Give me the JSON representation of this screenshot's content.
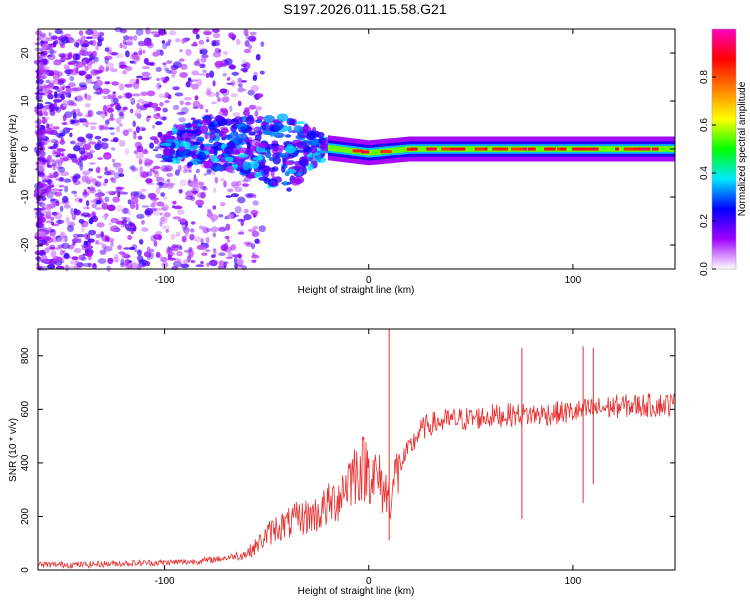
{
  "title": "S197.2026.011.15.58.G21",
  "chart_data": [
    {
      "type": "heatmap",
      "title": "S197.2026.011.15.58.G21",
      "xlabel": "Height of straight line (km)",
      "ylabel": "Frequency (Hz)",
      "xlim": [
        -162,
        150
      ],
      "ylim": [
        -25,
        25
      ],
      "x_ticks": [
        -100,
        0,
        100
      ],
      "y_ticks": [
        -20,
        -10,
        0,
        10,
        20
      ],
      "description_band": "Noisy purple speckle for heights below about -100 km; a broad blue/cyan band between about -100 and -20 km; a narrow band centered at 0 Hz from about -20 km to 150 km with peak amplitude (red) near 0 Hz.",
      "band": [
        {
          "x": -100,
          "center": 0.2,
          "half_width": 3.0
        },
        {
          "x": -80,
          "center": 1.5,
          "half_width": 5.0
        },
        {
          "x": -60,
          "center": 0.5,
          "half_width": 6.0
        },
        {
          "x": -40,
          "center": -1.0,
          "half_width": 8.0
        },
        {
          "x": -25,
          "center": 0.5,
          "half_width": 3.0
        },
        {
          "x": -15,
          "center": 0.0,
          "half_width": 1.0
        },
        {
          "x": 0,
          "center": -0.8,
          "half_width": 0.8
        },
        {
          "x": 20,
          "center": 0.0,
          "half_width": 0.8
        },
        {
          "x": 100,
          "center": 0.0,
          "half_width": 0.8
        },
        {
          "x": 150,
          "center": 0.0,
          "half_width": 0.8
        }
      ],
      "colorbar": {
        "label": "Normalized spectral amplitude",
        "range": [
          0.0,
          1.0
        ],
        "ticks": [
          0.0,
          0.2,
          0.4,
          0.6,
          0.8
        ],
        "colors": [
          "#ffffff",
          "#a000ff",
          "#0000ff",
          "#00e8ff",
          "#00ff00",
          "#ffff00",
          "#ff8000",
          "#ff0000",
          "#ff00c0"
        ]
      }
    },
    {
      "type": "line",
      "title": "",
      "xlabel": "Height of straight line (km)",
      "ylabel": "SNR (10 * v/v)",
      "xlim": [
        -162,
        150
      ],
      "ylim": [
        0,
        900
      ],
      "x_ticks": [
        -100,
        0,
        100
      ],
      "y_ticks": [
        0,
        200,
        400,
        600,
        800
      ],
      "series_color": "#e83030",
      "series": [
        {
          "name": "SNR",
          "x": [
            -162,
            -140,
            -120,
            -100,
            -90,
            -80,
            -70,
            -60,
            -55,
            -50,
            -45,
            -40,
            -35,
            -30,
            -25,
            -20,
            -15,
            -10,
            -5,
            0,
            5,
            10,
            15,
            20,
            25,
            30,
            40,
            50,
            60,
            70,
            80,
            90,
            100,
            110,
            120,
            130,
            140,
            150
          ],
          "y": [
            20,
            20,
            25,
            28,
            30,
            35,
            45,
            60,
            90,
            130,
            160,
            170,
            190,
            200,
            210,
            240,
            270,
            340,
            380,
            380,
            330,
            270,
            390,
            450,
            520,
            545,
            560,
            565,
            575,
            580,
            580,
            585,
            590,
            600,
            610,
            615,
            615,
            620
          ]
        }
      ],
      "spikes": [
        {
          "x": 10,
          "y_min": 110,
          "y_max": 900
        },
        {
          "x": 75,
          "y_min": 190,
          "y_max": 830
        },
        {
          "x": 105,
          "y_min": 250,
          "y_max": 835
        },
        {
          "x": 110,
          "y_min": 320,
          "y_max": 830
        }
      ]
    }
  ]
}
